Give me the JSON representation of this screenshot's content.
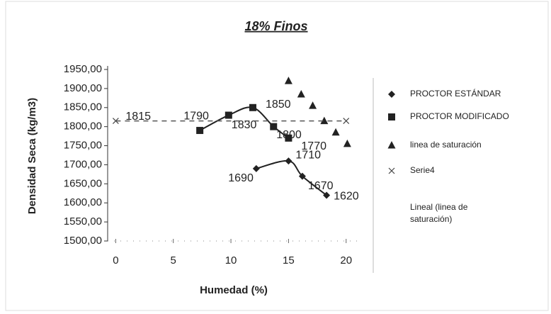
{
  "chart_data": {
    "type": "scatter",
    "title": "18% Finos",
    "x_label": "Humedad (%)",
    "y_label": "Densidad Seca (kg/m3)",
    "xlim": [
      -0.7,
      21
    ],
    "xticks": [
      0,
      5,
      10,
      15,
      20
    ],
    "ylim": [
      1500,
      1950
    ],
    "yticks": [
      {
        "value": 1500,
        "label": "1500,00"
      },
      {
        "value": 1550,
        "label": "1550,00"
      },
      {
        "value": 1600,
        "label": "1600,00"
      },
      {
        "value": 1650,
        "label": "1650,00"
      },
      {
        "value": 1700,
        "label": "1700,00"
      },
      {
        "value": 1750,
        "label": "1750,00"
      },
      {
        "value": 1800,
        "label": "1800,00"
      },
      {
        "value": 1850,
        "label": "1850,00"
      },
      {
        "value": 1900,
        "label": "1900,00"
      },
      {
        "value": 1950,
        "label": "1950,00"
      }
    ],
    "legend": "right",
    "series": [
      {
        "name": "PROCTOR ESTÁNDAR",
        "color": "#222222",
        "marker": "diamond",
        "line": "smooth",
        "data_labels": true,
        "x": [
          12.2,
          15,
          16.2,
          18.3
        ],
        "values": [
          1690,
          1710,
          1670,
          1620
        ]
      },
      {
        "name": "PROCTOR MODIFICADO",
        "color": "#222222",
        "marker": "square",
        "line": "smooth",
        "data_labels": true,
        "x": [
          7.3,
          9.8,
          11.9,
          13.7,
          15
        ],
        "values": [
          1790,
          1830,
          1850,
          1800,
          1770
        ]
      },
      {
        "name": "linea de saturación",
        "color": "#222222",
        "marker": "triangle",
        "x": [
          15,
          16.1,
          17.1,
          18.1,
          19.1,
          20.1
        ],
        "values": [
          1920,
          1885,
          1855,
          1815,
          1785,
          1755
        ]
      },
      {
        "name": "Serie4",
        "color": "#444444",
        "marker": "cross",
        "data_labels": true,
        "x": [
          0,
          20
        ],
        "values": [
          1815,
          1815
        ]
      },
      {
        "name": "Lineal (linea de saturación)",
        "color": "#555555",
        "line": "dashed",
        "x": [
          0,
          20
        ],
        "values": [
          1815,
          1815
        ]
      }
    ]
  }
}
